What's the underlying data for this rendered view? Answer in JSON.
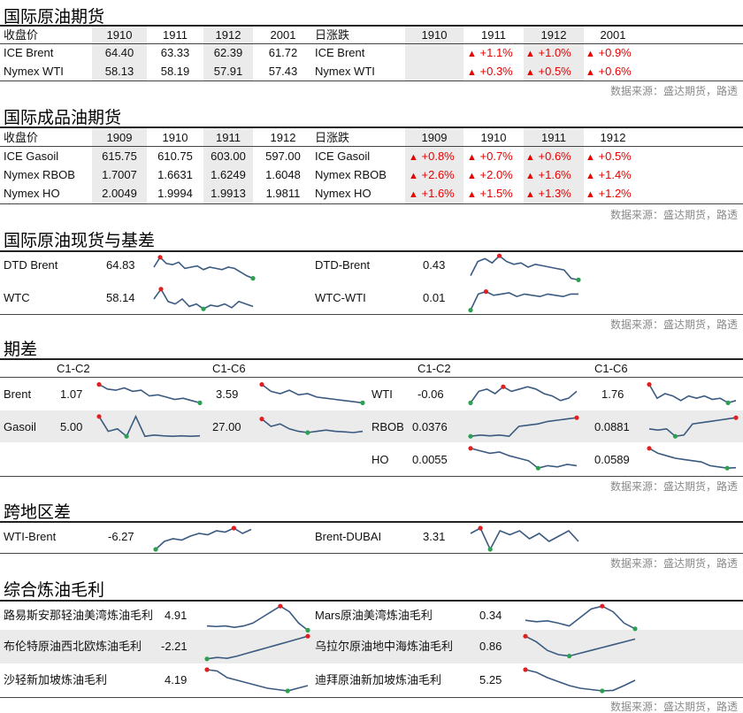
{
  "source_note": "数据来源：盛达期货，路透",
  "crude_futures": {
    "title": "国际原油期货",
    "price_label": "收盘价",
    "change_label": "日涨跌",
    "months": [
      "1910",
      "1911",
      "1912",
      "2001"
    ],
    "rows": [
      {
        "name": "ICE Brent",
        "prices": [
          "64.40",
          "63.33",
          "62.39",
          "61.72"
        ],
        "changes": [
          "",
          "+1.1%",
          "+1.0%",
          "+0.9%"
        ]
      },
      {
        "name": "Nymex WTI",
        "prices": [
          "58.13",
          "58.19",
          "57.91",
          "57.43"
        ],
        "changes": [
          "",
          "+0.3%",
          "+0.5%",
          "+0.6%"
        ]
      }
    ]
  },
  "product_futures": {
    "title": "国际成品油期货",
    "price_label": "收盘价",
    "change_label": "日涨跌",
    "months": [
      "1909",
      "1910",
      "1911",
      "1912"
    ],
    "rows": [
      {
        "name": "ICE Gasoil",
        "prices": [
          "615.75",
          "610.75",
          "603.00",
          "597.00"
        ],
        "changes": [
          "+0.8%",
          "+0.7%",
          "+0.6%",
          "+0.5%"
        ]
      },
      {
        "name": "Nymex RBOB",
        "prices": [
          "1.7007",
          "1.6631",
          "1.6249",
          "1.6048"
        ],
        "changes": [
          "+2.6%",
          "+2.0%",
          "+1.6%",
          "+1.4%"
        ]
      },
      {
        "name": "Nymex HO",
        "prices": [
          "2.0049",
          "1.9994",
          "1.9913",
          "1.9811"
        ],
        "changes": [
          "+1.6%",
          "+1.5%",
          "+1.3%",
          "+1.2%"
        ]
      }
    ]
  },
  "spot_basis": {
    "title": "国际原油现货与基差",
    "items": [
      {
        "name": "DTD Brent",
        "value": "64.83"
      },
      {
        "name": "DTD-Brent",
        "value": "0.43"
      },
      {
        "name": "WTC",
        "value": "58.14"
      },
      {
        "name": "WTC-WTI",
        "value": "0.01"
      }
    ]
  },
  "spreads": {
    "title": "期差",
    "col_labels": [
      "C1-C2",
      "C1-C6",
      "C1-C2",
      "C1-C6"
    ],
    "left": [
      {
        "name": "Brent",
        "c1c2": "1.07",
        "c1c6": "3.59"
      },
      {
        "name": "Gasoil",
        "c1c2": "5.00",
        "c1c6": "27.00"
      }
    ],
    "right": [
      {
        "name": "WTI",
        "c1c2": "-0.06",
        "c1c6": "1.76"
      },
      {
        "name": "RBOB",
        "c1c2": "0.0376",
        "c1c6": "0.0881"
      },
      {
        "name": "HO",
        "c1c2": "0.0055",
        "c1c6": "0.0589"
      }
    ]
  },
  "arb": {
    "title": "跨地区差",
    "items": [
      {
        "name": "WTI-Brent",
        "value": "-6.27"
      },
      {
        "name": "Brent-DUBAI",
        "value": "3.31"
      }
    ]
  },
  "margins": {
    "title": "综合炼油毛利",
    "items": [
      {
        "name": "路易斯安那轻油美湾炼油毛利",
        "value": "4.91"
      },
      {
        "name": "Mars原油美湾炼油毛利",
        "value": "0.34"
      },
      {
        "name": "布伦特原油西北欧炼油毛利",
        "value": "-2.21"
      },
      {
        "name": "乌拉尔原油地中海炼油毛利",
        "value": "0.86"
      },
      {
        "name": "沙轻新加坡炼油毛利",
        "value": "4.19"
      },
      {
        "name": "迪拜原油新加坡炼油毛利",
        "value": "5.25"
      }
    ]
  },
  "colors": {
    "line": "#3a5a80",
    "max_marker": "#e02020",
    "min_marker": "#2aa050",
    "up": "#e60000"
  }
}
